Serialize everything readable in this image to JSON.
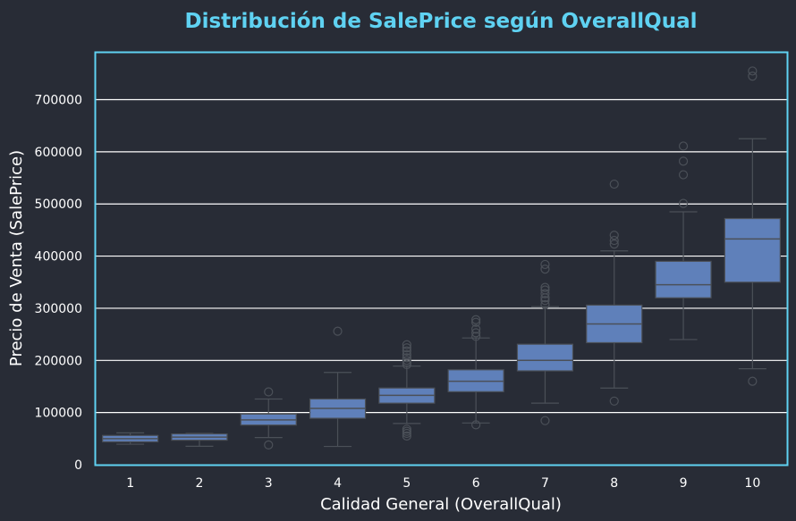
{
  "chart_data": {
    "type": "box",
    "title": "Distribución de SalePrice según OverallQual",
    "xlabel": "Calidad General (OverallQual)",
    "ylabel": "Precio de Venta (SalePrice)",
    "ylim": [
      0,
      790000
    ],
    "y_ticks": [
      "0",
      "100000",
      "200000",
      "300000",
      "400000",
      "500000",
      "600000",
      "700000"
    ],
    "grid": "horizontal",
    "categories": [
      "1",
      "2",
      "3",
      "4",
      "5",
      "6",
      "7",
      "8",
      "9",
      "10"
    ],
    "boxes": [
      {
        "category": "1",
        "whisker_low": 39300,
        "q1": 44000,
        "median": 50000,
        "q3": 56000,
        "whisker_high": 61000,
        "outliers": []
      },
      {
        "category": "2",
        "whisker_low": 35300,
        "q1": 47000,
        "median": 53000,
        "q3": 59000,
        "whisker_high": 60000,
        "outliers": []
      },
      {
        "category": "3",
        "whisker_low": 52000,
        "q1": 76000,
        "median": 86000,
        "q3": 97000,
        "whisker_high": 126000,
        "outliers": [
          37900,
          139600
        ]
      },
      {
        "category": "4",
        "whisker_low": 35000,
        "q1": 89000,
        "median": 108000,
        "q3": 126000,
        "whisker_high": 177000,
        "outliers": [
          256000
        ]
      },
      {
        "category": "5",
        "whisker_low": 79000,
        "q1": 118000,
        "median": 133000,
        "q3": 147000,
        "whisker_high": 189000,
        "outliers": [
          55000,
          60000,
          64000,
          68000,
          192000,
          196000,
          200000,
          205000,
          211000,
          218000,
          224000,
          230000
        ]
      },
      {
        "category": "6",
        "whisker_low": 80000,
        "q1": 140000,
        "median": 160000,
        "q3": 182000,
        "whisker_high": 243000,
        "outliers": [
          76500,
          246000,
          253000,
          260000,
          273000,
          278000
        ]
      },
      {
        "category": "7",
        "whisker_low": 118000,
        "q1": 180000,
        "median": 200000,
        "q3": 231000,
        "whisker_high": 303000,
        "outliers": [
          84500,
          307000,
          315000,
          320000,
          328000,
          335000,
          340000,
          375000,
          384000
        ]
      },
      {
        "category": "8",
        "whisker_low": 147000,
        "q1": 234000,
        "median": 270000,
        "q3": 306000,
        "whisker_high": 410000,
        "outliers": [
          122000,
          423000,
          430000,
          440000,
          538000
        ]
      },
      {
        "category": "9",
        "whisker_low": 240000,
        "q1": 320000,
        "median": 345000,
        "q3": 390000,
        "whisker_high": 485000,
        "outliers": [
          501000,
          556000,
          582000,
          611000
        ]
      },
      {
        "category": "10",
        "whisker_low": 184000,
        "q1": 350000,
        "median": 433000,
        "q3": 472000,
        "whisker_high": 625000,
        "outliers": [
          160000,
          745000,
          755000
        ]
      }
    ],
    "colors": {
      "box_fill": "#5f80ba",
      "box_line": "#4b5058",
      "grid": "#ffffff",
      "frame": "#5fd2f2",
      "title": "#5fd2f2",
      "text": "#ffffff",
      "background": "#282c36"
    }
  }
}
